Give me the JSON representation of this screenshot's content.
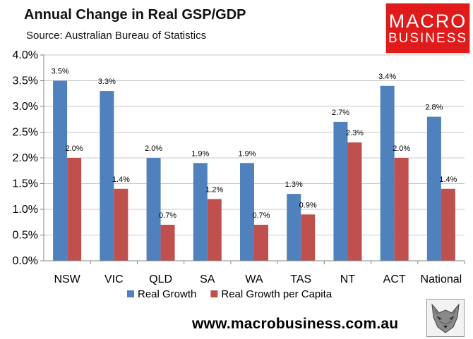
{
  "title": "Annual Change in Real GSP/GDP",
  "subtitle": "Source: Australian Bureau of Statistics",
  "logo": {
    "line1": "MACRO",
    "line2": "BUSINESS",
    "color": "#e31b1b"
  },
  "url": "www.macrobusiness.com.au",
  "chart_data": {
    "type": "bar",
    "categories": [
      "NSW",
      "VIC",
      "QLD",
      "SA",
      "WA",
      "TAS",
      "NT",
      "ACT",
      "National"
    ],
    "series": [
      {
        "name": "Real Growth",
        "color": "#4f81bd",
        "values": [
          3.5,
          3.3,
          2.0,
          1.9,
          1.9,
          1.3,
          2.7,
          3.4,
          2.8
        ],
        "labels": [
          "3.5%",
          "3.3%",
          "2.0%",
          "1.9%",
          "1.9%",
          "1.3%",
          "2.7%",
          "3.4%",
          "2.8%"
        ]
      },
      {
        "name": "Real Growth per Capita",
        "color": "#c0504d",
        "values": [
          2.0,
          1.4,
          0.7,
          1.2,
          0.7,
          0.9,
          2.3,
          2.0,
          1.4
        ],
        "labels": [
          "2.0%",
          "1.4%",
          "0.7%",
          "1.2%",
          "0.7%",
          "0.9%",
          "2.3%",
          "2.0%",
          "1.4%"
        ]
      }
    ],
    "yticks": [
      "0.0%",
      "0.5%",
      "1.0%",
      "1.5%",
      "2.0%",
      "2.5%",
      "3.0%",
      "3.5%",
      "4.0%"
    ],
    "ylim": [
      0,
      4
    ],
    "xlabel": "",
    "ylabel": "",
    "legend": "bottom"
  }
}
